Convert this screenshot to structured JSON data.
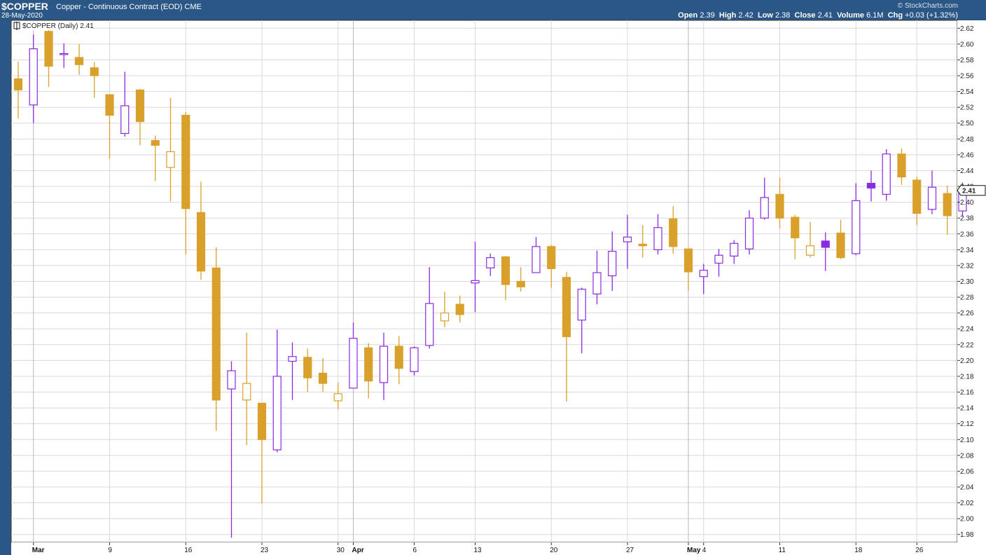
{
  "header": {
    "symbol": "$COPPER",
    "name": "Copper - Continuous Contract (EOD)",
    "exchange": "CME",
    "date": "28-May-2020",
    "brand": "© StockCharts.com",
    "open_label": "Open",
    "open": "2.39",
    "high_label": "High",
    "high": "2.42",
    "low_label": "Low",
    "low": "2.38",
    "close_label": "Close",
    "close": "2.41",
    "volume_label": "Volume",
    "volume": "6.1M",
    "chg_label": "Chg",
    "chg": "+0.03 (+1.32%)"
  },
  "legend": "$COPPER (Daily) 2.41",
  "last_price_tag": "2.41",
  "colors": {
    "up": "#8a2be2",
    "down": "#d9a12b",
    "grid": "#d8d8d8",
    "frame": "#2a5785"
  },
  "chart_data": {
    "type": "candlestick",
    "title": "$COPPER (Daily) 2.41",
    "ylim": [
      1.97,
      2.63
    ],
    "y_ticks": [
      1.98,
      2.0,
      2.02,
      2.04,
      2.06,
      2.08,
      2.1,
      2.12,
      2.14,
      2.16,
      2.18,
      2.2,
      2.22,
      2.24,
      2.26,
      2.28,
      2.3,
      2.32,
      2.34,
      2.36,
      2.38,
      2.4,
      2.42,
      2.44,
      2.46,
      2.48,
      2.5,
      2.52,
      2.54,
      2.56,
      2.58,
      2.6,
      2.62
    ],
    "x_ticks": [
      {
        "label": "Mar",
        "index": 1,
        "bold": true,
        "major": true
      },
      {
        "label": "9",
        "index": 6
      },
      {
        "label": "16",
        "index": 11
      },
      {
        "label": "23",
        "index": 16
      },
      {
        "label": "30",
        "index": 21
      },
      {
        "label": "Apr",
        "index": 22,
        "bold": true,
        "major": true
      },
      {
        "label": "6",
        "index": 26
      },
      {
        "label": "13",
        "index": 30
      },
      {
        "label": "20",
        "index": 35
      },
      {
        "label": "27",
        "index": 40
      },
      {
        "label": "May",
        "index": 44,
        "bold": true,
        "major": true
      },
      {
        "label": "4",
        "index": 45
      },
      {
        "label": "11",
        "index": 50
      },
      {
        "label": "18",
        "index": 55
      },
      {
        "label": "26",
        "index": 59
      }
    ],
    "candles": [
      {
        "o": 2.542,
        "h": 2.578,
        "l": 2.506,
        "c": 2.556,
        "up": false
      },
      {
        "o": 2.523,
        "h": 2.612,
        "l": 2.5,
        "c": 2.594,
        "up": true
      },
      {
        "o": 2.616,
        "h": 2.62,
        "l": 2.546,
        "c": 2.572,
        "up": false
      },
      {
        "o": 2.587,
        "h": 2.601,
        "l": 2.57,
        "c": 2.588,
        "up": true
      },
      {
        "o": 2.583,
        "h": 2.6,
        "l": 2.561,
        "c": 2.574,
        "up": false
      },
      {
        "o": 2.57,
        "h": 2.577,
        "l": 2.532,
        "c": 2.56,
        "up": false
      },
      {
        "o": 2.536,
        "h": 2.536,
        "l": 2.455,
        "c": 2.51,
        "up": false
      },
      {
        "o": 2.487,
        "h": 2.565,
        "l": 2.483,
        "c": 2.522,
        "up": true
      },
      {
        "o": 2.542,
        "h": 2.543,
        "l": 2.472,
        "c": 2.502,
        "up": false
      },
      {
        "o": 2.478,
        "h": 2.484,
        "l": 2.427,
        "c": 2.472,
        "up": false
      },
      {
        "o": 2.444,
        "h": 2.532,
        "l": 2.401,
        "c": 2.464,
        "up": false,
        "hollow": true
      },
      {
        "o": 2.51,
        "h": 2.514,
        "l": 2.334,
        "c": 2.392,
        "up": false
      },
      {
        "o": 2.387,
        "h": 2.426,
        "l": 2.302,
        "c": 2.313,
        "up": false
      },
      {
        "o": 2.317,
        "h": 2.343,
        "l": 2.111,
        "c": 2.15,
        "up": false
      },
      {
        "o": 2.164,
        "h": 2.199,
        "l": 1.976,
        "c": 2.187,
        "up": true
      },
      {
        "o": 2.15,
        "h": 2.235,
        "l": 2.093,
        "c": 2.171,
        "up": false,
        "hollow": true
      },
      {
        "o": 2.146,
        "h": 2.146,
        "l": 2.019,
        "c": 2.1,
        "up": false
      },
      {
        "o": 2.087,
        "h": 2.239,
        "l": 2.084,
        "c": 2.18,
        "up": true
      },
      {
        "o": 2.199,
        "h": 2.223,
        "l": 2.15,
        "c": 2.205,
        "up": true
      },
      {
        "o": 2.204,
        "h": 2.215,
        "l": 2.16,
        "c": 2.178,
        "up": false
      },
      {
        "o": 2.184,
        "h": 2.203,
        "l": 2.16,
        "c": 2.171,
        "up": false
      },
      {
        "o": 2.149,
        "h": 2.172,
        "l": 2.138,
        "c": 2.158,
        "up": false,
        "hollow": true
      },
      {
        "o": 2.165,
        "h": 2.248,
        "l": 2.165,
        "c": 2.228,
        "up": true
      },
      {
        "o": 2.216,
        "h": 2.222,
        "l": 2.152,
        "c": 2.174,
        "up": false
      },
      {
        "o": 2.172,
        "h": 2.235,
        "l": 2.15,
        "c": 2.218,
        "up": true
      },
      {
        "o": 2.218,
        "h": 2.231,
        "l": 2.17,
        "c": 2.19,
        "up": false
      },
      {
        "o": 2.186,
        "h": 2.218,
        "l": 2.181,
        "c": 2.216,
        "up": true
      },
      {
        "o": 2.219,
        "h": 2.318,
        "l": 2.215,
        "c": 2.272,
        "up": true
      },
      {
        "o": 2.25,
        "h": 2.287,
        "l": 2.242,
        "c": 2.26,
        "up": false,
        "hollow": true
      },
      {
        "o": 2.271,
        "h": 2.282,
        "l": 2.248,
        "c": 2.258,
        "up": false
      },
      {
        "o": 2.298,
        "h": 2.35,
        "l": 2.261,
        "c": 2.301,
        "up": true
      },
      {
        "o": 2.317,
        "h": 2.335,
        "l": 2.307,
        "c": 2.33,
        "up": true
      },
      {
        "o": 2.331,
        "h": 2.332,
        "l": 2.276,
        "c": 2.296,
        "up": false
      },
      {
        "o": 2.3,
        "h": 2.318,
        "l": 2.287,
        "c": 2.293,
        "up": false
      },
      {
        "o": 2.311,
        "h": 2.356,
        "l": 2.311,
        "c": 2.344,
        "up": true
      },
      {
        "o": 2.344,
        "h": 2.346,
        "l": 2.292,
        "c": 2.316,
        "up": false
      },
      {
        "o": 2.305,
        "h": 2.312,
        "l": 2.148,
        "c": 2.23,
        "up": false
      },
      {
        "o": 2.251,
        "h": 2.292,
        "l": 2.209,
        "c": 2.29,
        "up": true
      },
      {
        "o": 2.284,
        "h": 2.339,
        "l": 2.271,
        "c": 2.311,
        "up": true
      },
      {
        "o": 2.307,
        "h": 2.363,
        "l": 2.288,
        "c": 2.338,
        "up": true
      },
      {
        "o": 2.35,
        "h": 2.384,
        "l": 2.316,
        "c": 2.356,
        "up": true
      },
      {
        "o": 2.347,
        "h": 2.371,
        "l": 2.33,
        "c": 2.345,
        "up": false
      },
      {
        "o": 2.34,
        "h": 2.385,
        "l": 2.334,
        "c": 2.368,
        "up": true
      },
      {
        "o": 2.379,
        "h": 2.395,
        "l": 2.335,
        "c": 2.344,
        "up": false
      },
      {
        "o": 2.341,
        "h": 2.341,
        "l": 2.288,
        "c": 2.312,
        "up": false
      },
      {
        "o": 2.306,
        "h": 2.322,
        "l": 2.284,
        "c": 2.314,
        "up": true
      },
      {
        "o": 2.323,
        "h": 2.341,
        "l": 2.306,
        "c": 2.333,
        "up": true
      },
      {
        "o": 2.332,
        "h": 2.352,
        "l": 2.322,
        "c": 2.348,
        "up": true
      },
      {
        "o": 2.341,
        "h": 2.39,
        "l": 2.334,
        "c": 2.38,
        "up": true
      },
      {
        "o": 2.38,
        "h": 2.431,
        "l": 2.378,
        "c": 2.406,
        "up": true
      },
      {
        "o": 2.41,
        "h": 2.431,
        "l": 2.367,
        "c": 2.38,
        "up": false
      },
      {
        "o": 2.381,
        "h": 2.384,
        "l": 2.328,
        "c": 2.355,
        "up": false
      },
      {
        "o": 2.333,
        "h": 2.375,
        "l": 2.33,
        "c": 2.345,
        "up": false,
        "hollow": true
      },
      {
        "o": 2.343,
        "h": 2.362,
        "l": 2.313,
        "c": 2.351,
        "up": true,
        "filled": true
      },
      {
        "o": 2.361,
        "h": 2.378,
        "l": 2.328,
        "c": 2.33,
        "up": false
      },
      {
        "o": 2.335,
        "h": 2.424,
        "l": 2.333,
        "c": 2.402,
        "up": true
      },
      {
        "o": 2.418,
        "h": 2.44,
        "l": 2.401,
        "c": 2.424,
        "up": true,
        "filled": true
      },
      {
        "o": 2.41,
        "h": 2.467,
        "l": 2.402,
        "c": 2.461,
        "up": true
      },
      {
        "o": 2.461,
        "h": 2.468,
        "l": 2.422,
        "c": 2.432,
        "up": false
      },
      {
        "o": 2.428,
        "h": 2.432,
        "l": 2.371,
        "c": 2.386,
        "up": false
      },
      {
        "o": 2.391,
        "h": 2.44,
        "l": 2.385,
        "c": 2.419,
        "up": true
      },
      {
        "o": 2.411,
        "h": 2.421,
        "l": 2.359,
        "c": 2.383,
        "up": false
      },
      {
        "o": 2.389,
        "h": 2.425,
        "l": 2.382,
        "c": 2.415,
        "up": true
      }
    ]
  }
}
